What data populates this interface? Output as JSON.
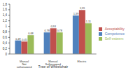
{
  "chart_data": {
    "type": "bar",
    "xlabel": "Type of Wheelchair",
    "categories": [
      "Manual Not softwrapped",
      "Manual Softwrapped",
      "Electric"
    ],
    "series": [
      {
        "name": "Competence",
        "color": "#4f81bd",
        "values": [
          0.49,
          0.78,
          1.39
        ],
        "value_labels": [
          "0,49",
          "0,78",
          "1,39"
        ]
      },
      {
        "name": "Acceptability",
        "color": "#c0504d",
        "values": [
          0.45,
          0.93,
          1.59
        ],
        "value_labels": [
          "0,45",
          "0,93",
          "1,59"
        ]
      },
      {
        "name": "Self-esteem",
        "color": "#9bbb59",
        "values": [
          0.68,
          0.78,
          1.11
        ],
        "value_labels": [
          "0,68",
          "0,78",
          "1,11"
        ]
      }
    ],
    "ylim": [
      0,
      1.8
    ],
    "yticks": [
      0,
      {
        "value": 0.2,
        "label": "0,2"
      },
      {
        "value": 0.4,
        "label": "0,4"
      },
      {
        "value": 0.6,
        "label": "0,6"
      },
      {
        "value": 0.8,
        "label": "0,8"
      },
      1,
      {
        "value": 1.2,
        "label": "1,2"
      },
      {
        "value": 1.4,
        "label": "1,4"
      },
      {
        "value": 1.6,
        "label": "1,6"
      },
      {
        "value": 1.8,
        "label": "1,8"
      }
    ],
    "legend": "right",
    "data_labels": true
  }
}
